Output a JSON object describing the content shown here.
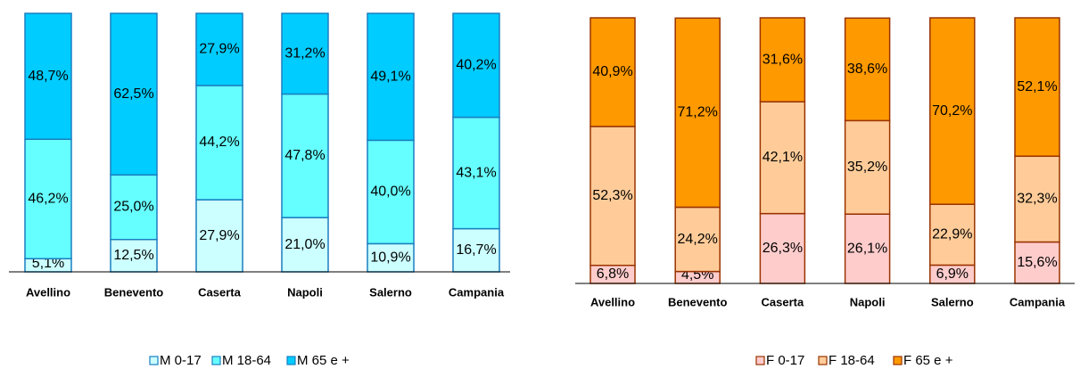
{
  "chart_data": [
    {
      "type": "stacked_bar",
      "categories": [
        "Avellino",
        "Benevento",
        "Caserta",
        "Napoli",
        "Salerno",
        "Campania"
      ],
      "ylim": [
        0,
        100
      ],
      "edge_color": "#1a7fc0",
      "series": [
        {
          "name": "M 0-17",
          "color": "#ccffff",
          "values": [
            5.1,
            12.5,
            27.9,
            21.0,
            10.9,
            16.7
          ],
          "value_labels": [
            "5,1%",
            "12,5%",
            "27,9%",
            "21,0%",
            "10,9%",
            "16,7%"
          ]
        },
        {
          "name": "M 18-64",
          "color": "#66ffff",
          "values": [
            46.2,
            25.0,
            44.2,
            47.8,
            40.0,
            43.1
          ],
          "value_labels": [
            "46,2%",
            "25,0%",
            "44,2%",
            "47,8%",
            "40,0%",
            "43,1%"
          ]
        },
        {
          "name": "M 65 e +",
          "color": "#00ccff",
          "values": [
            48.7,
            62.5,
            27.9,
            31.2,
            49.1,
            40.2
          ],
          "value_labels": [
            "48,7%",
            "62,5%",
            "27,9%",
            "31,2%",
            "49,1%",
            "40,2%"
          ]
        }
      ]
    },
    {
      "type": "stacked_bar",
      "categories": [
        "Avellino",
        "Benevento",
        "Caserta",
        "Napoli",
        "Salerno",
        "Campania"
      ],
      "ylim": [
        0,
        100
      ],
      "edge_color": "#993300",
      "series": [
        {
          "name": "F 0-17",
          "color": "#ffcccc",
          "values": [
            6.8,
            4.5,
            26.3,
            26.1,
            6.9,
            15.6
          ],
          "value_labels": [
            "6,8%",
            "4,5%",
            "26,3%",
            "26,1%",
            "6,9%",
            "15,6%"
          ]
        },
        {
          "name": "F 18-64",
          "color": "#ffcc99",
          "values": [
            52.3,
            24.2,
            42.1,
            35.2,
            22.9,
            32.3
          ],
          "value_labels": [
            "52,3%",
            "24,2%",
            "42,1%",
            "35,2%",
            "22,9%",
            "32,3%"
          ]
        },
        {
          "name": "F 65 e +",
          "color": "#ff9900",
          "values": [
            40.9,
            71.2,
            31.6,
            38.6,
            70.2,
            52.1
          ],
          "value_labels": [
            "40,9%",
            "71,2%",
            "31,6%",
            "38,6%",
            "70,2%",
            "52,1%"
          ]
        }
      ]
    }
  ]
}
